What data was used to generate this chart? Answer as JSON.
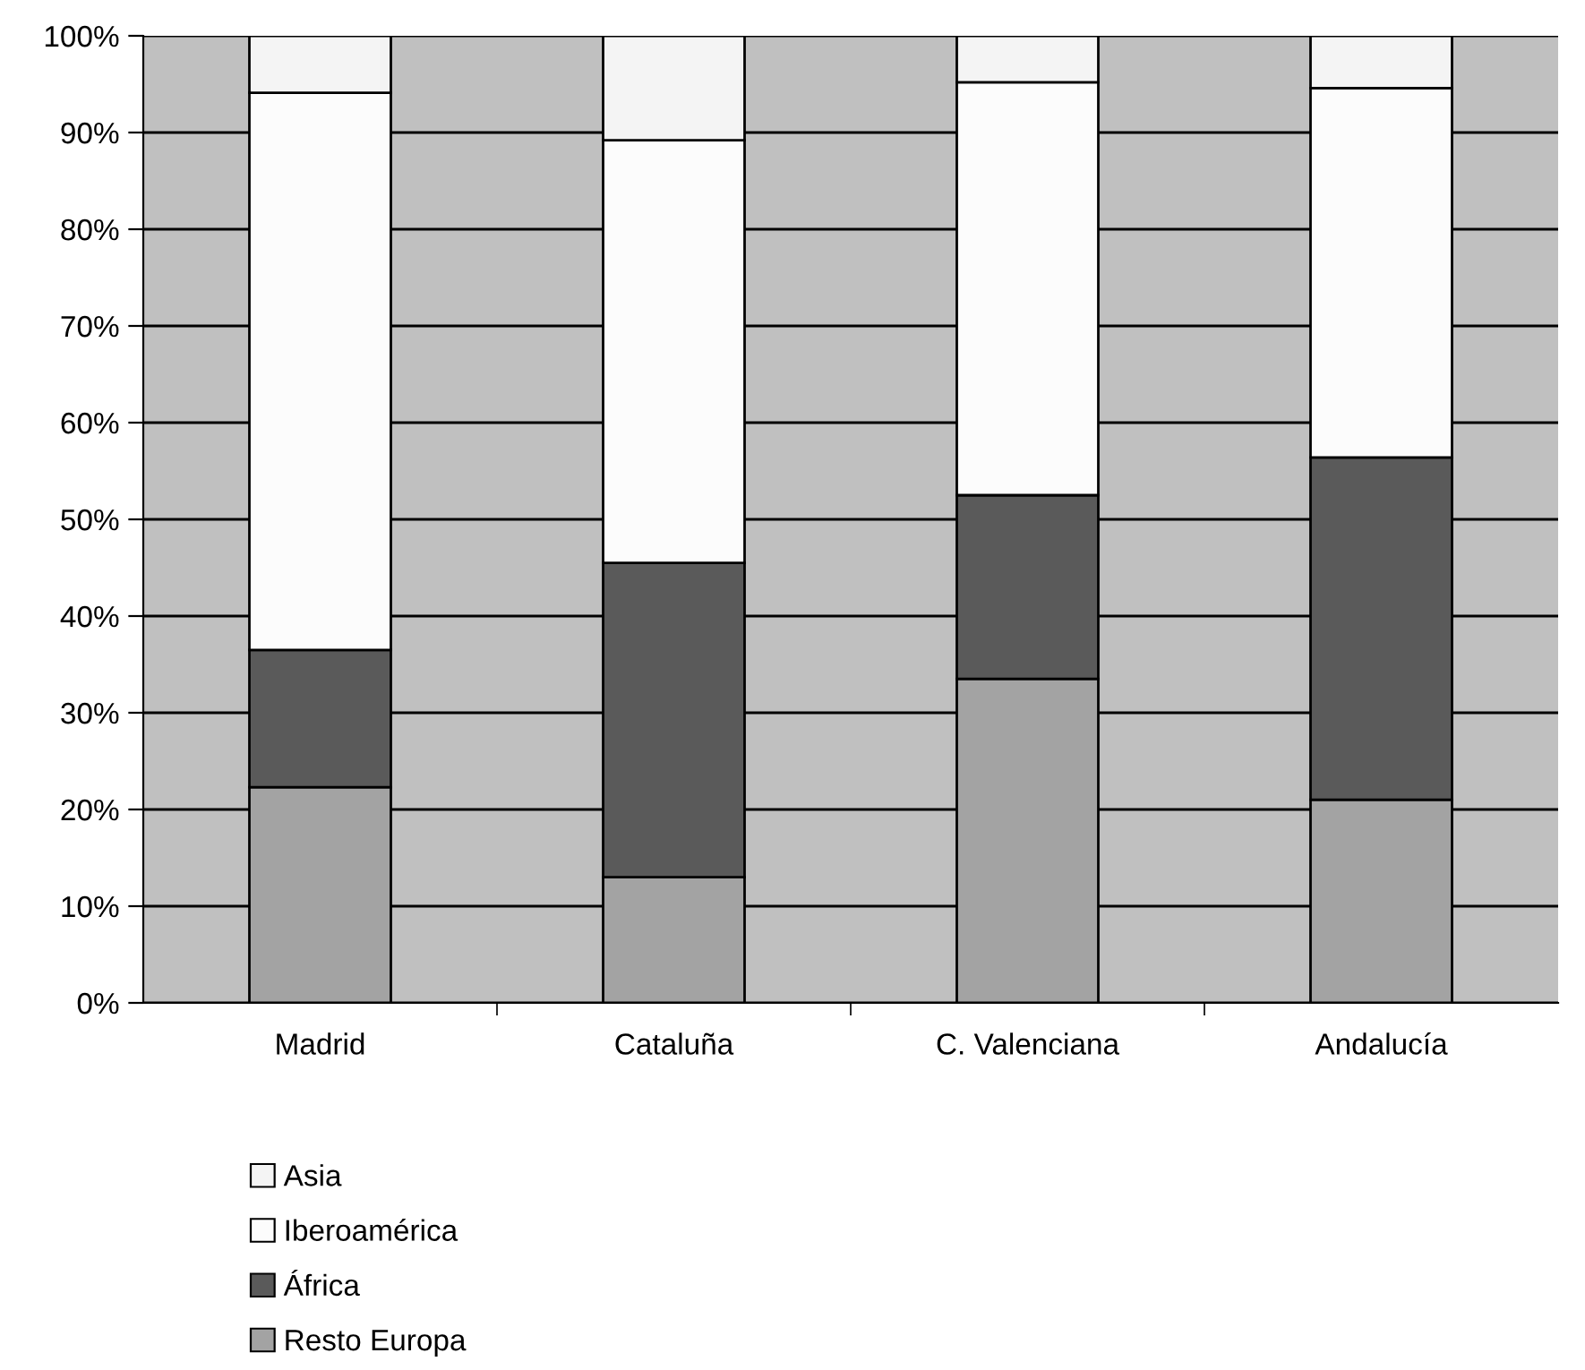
{
  "chart_data": {
    "type": "bar",
    "stacked": true,
    "categories": [
      "Madrid",
      "Cataluña",
      "C. Valenciana",
      "Andalucía"
    ],
    "series": [
      {
        "name": "Resto Europa",
        "color": "#a3a3a3",
        "values": [
          22.3,
          13.0,
          33.5,
          21.0
        ]
      },
      {
        "name": "África",
        "color": "#5a5a5a",
        "values": [
          14.2,
          32.5,
          19.0,
          35.4
        ]
      },
      {
        "name": "Iberoamérica",
        "color": "#fcfcfc",
        "values": [
          57.6,
          43.7,
          42.7,
          38.2
        ]
      },
      {
        "name": "Asia",
        "color": "#f4f4f4",
        "values": [
          5.9,
          10.8,
          4.8,
          5.4
        ]
      }
    ],
    "ylim": [
      0,
      100
    ],
    "yticks": [
      {
        "value": 0,
        "label": "0%"
      },
      {
        "value": 10,
        "label": "10%"
      },
      {
        "value": 20,
        "label": "20%"
      },
      {
        "value": 30,
        "label": "30%"
      },
      {
        "value": 40,
        "label": "40%"
      },
      {
        "value": 50,
        "label": "50%"
      },
      {
        "value": 60,
        "label": "60%"
      },
      {
        "value": 70,
        "label": "70%"
      },
      {
        "value": 80,
        "label": "80%"
      },
      {
        "value": 90,
        "label": "90%"
      },
      {
        "value": 100,
        "label": "100%"
      }
    ],
    "grid": "y",
    "legend": "bottom"
  }
}
